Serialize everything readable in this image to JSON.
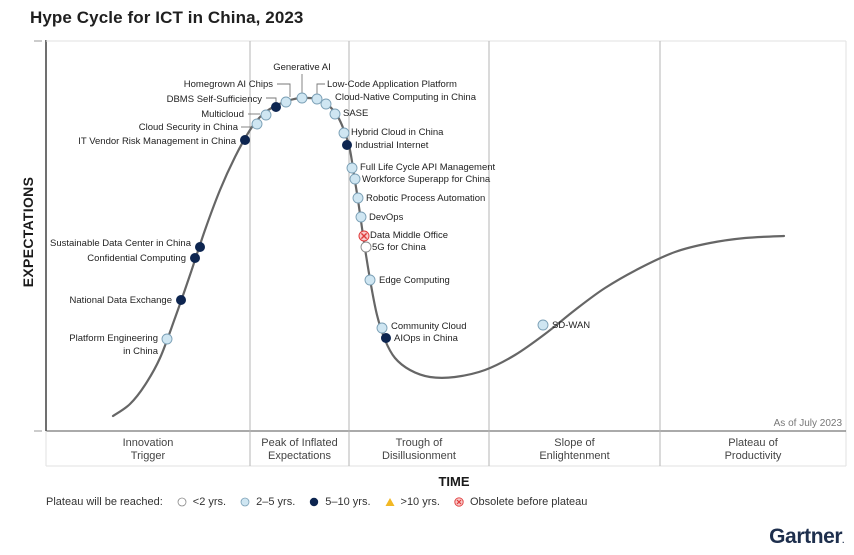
{
  "title": "Hype Cycle for ICT in China, 2023",
  "chart_data": {
    "type": "hype-cycle",
    "title": "Hype Cycle for ICT in China, 2023",
    "ylabel": "EXPECTATIONS",
    "xlabel": "TIME",
    "as_of": "As of July 2023",
    "phases": [
      {
        "line1": "Innovation",
        "line2": "Trigger"
      },
      {
        "line1": "Peak of Inflated",
        "line2": "Expectations"
      },
      {
        "line1": "Trough of",
        "line2": "Disillusionment"
      },
      {
        "line1": "Slope of",
        "line2": "Enlightenment"
      },
      {
        "line1": "Plateau of",
        "line2": "Productivity"
      }
    ],
    "legend": {
      "title": "Plateau will be reached:",
      "items": [
        {
          "key": "lt2",
          "label": "<2 yrs.",
          "color": "#ffffff"
        },
        {
          "key": "2to5",
          "label": "2–5 yrs.",
          "color": "#cfe6f2"
        },
        {
          "key": "5to10",
          "label": "5–10 yrs.",
          "color": "#0d2550"
        },
        {
          "key": "gt10",
          "label": ">10 yrs.",
          "color": "#f2b824"
        },
        {
          "key": "obsolete",
          "label": "Obsolete before plateau",
          "color": "#e03a3a"
        }
      ]
    },
    "technologies": [
      {
        "name": "Platform Engineering in China",
        "phase": "Innovation Trigger",
        "position": 0.145,
        "plateau": "2to5"
      },
      {
        "name": "National Data Exchange",
        "phase": "Innovation Trigger",
        "position": 0.165,
        "plateau": "5to10"
      },
      {
        "name": "Confidential Computing",
        "phase": "Innovation Trigger",
        "position": 0.185,
        "plateau": "5to10"
      },
      {
        "name": "Sustainable Data Center in China",
        "phase": "Innovation Trigger",
        "position": 0.19,
        "plateau": "5to10"
      },
      {
        "name": "IT Vendor Risk Management in China",
        "phase": "Innovation Trigger",
        "position": 0.25,
        "plateau": "5to10"
      },
      {
        "name": "Cloud Security in China",
        "phase": "Peak of Inflated Expectations",
        "position": 0.265,
        "plateau": "2to5"
      },
      {
        "name": "Multicloud",
        "phase": "Peak of Inflated Expectations",
        "position": 0.275,
        "plateau": "2to5"
      },
      {
        "name": "DBMS Self-Sufficiency",
        "phase": "Peak of Inflated Expectations",
        "position": 0.285,
        "plateau": "5to10"
      },
      {
        "name": "Homegrown AI Chips",
        "phase": "Peak of Inflated Expectations",
        "position": 0.296,
        "plateau": "2to5"
      },
      {
        "name": "Generative AI",
        "phase": "Peak of Inflated Expectations",
        "position": 0.313,
        "plateau": "2to5"
      },
      {
        "name": "Low-Code Application Platform",
        "phase": "Peak of Inflated Expectations",
        "position": 0.331,
        "plateau": "2to5"
      },
      {
        "name": "Cloud-Native Computing in China",
        "phase": "Peak of Inflated Expectations",
        "position": 0.34,
        "plateau": "2to5"
      },
      {
        "name": "SASE",
        "phase": "Peak of Inflated Expectations",
        "position": 0.35,
        "plateau": "2to5"
      },
      {
        "name": "Hybrid Cloud in China",
        "phase": "Peak of Inflated Expectations",
        "position": 0.36,
        "plateau": "2to5"
      },
      {
        "name": "Industrial Internet",
        "phase": "Sliding into the Trough",
        "position": 0.365,
        "plateau": "5to10"
      },
      {
        "name": "Full Life Cycle API Management",
        "phase": "Sliding into the Trough",
        "position": 0.37,
        "plateau": "2to5"
      },
      {
        "name": "Workforce Superapp for China",
        "phase": "Sliding into the Trough",
        "position": 0.372,
        "plateau": "2to5"
      },
      {
        "name": "Robotic Process Automation",
        "phase": "Sliding into the Trough",
        "position": 0.376,
        "plateau": "2to5"
      },
      {
        "name": "DevOps",
        "phase": "Sliding into the Trough",
        "position": 0.38,
        "plateau": "2to5"
      },
      {
        "name": "Data Middle Office",
        "phase": "Sliding into the Trough",
        "position": 0.383,
        "plateau": "obsolete"
      },
      {
        "name": "5G for China",
        "phase": "Sliding into the Trough",
        "position": 0.385,
        "plateau": "lt2"
      },
      {
        "name": "Edge Computing",
        "phase": "Sliding into the Trough",
        "position": 0.39,
        "plateau": "2to5"
      },
      {
        "name": "Community Cloud",
        "phase": "Sliding into the Trough",
        "position": 0.403,
        "plateau": "2to5"
      },
      {
        "name": "AIOps in China",
        "phase": "Sliding into the Trough",
        "position": 0.407,
        "plateau": "5to10"
      },
      {
        "name": "SD-WAN",
        "phase": "Slope of Enlightenment",
        "position": 0.62,
        "plateau": "2to5"
      }
    ]
  },
  "logo": {
    "text": "Gartner",
    "mark": "."
  }
}
